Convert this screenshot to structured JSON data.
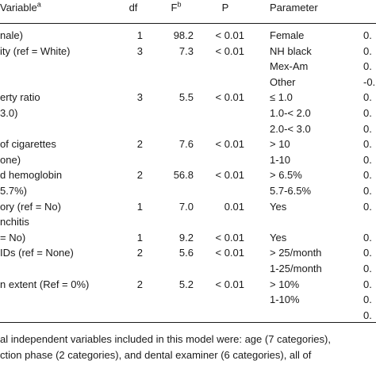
{
  "headers": {
    "variable": "Variable",
    "variable_sup": "a",
    "df": "df",
    "f": "F",
    "f_sup": "b",
    "p": "P",
    "parameter": "Parameter",
    "last": ""
  },
  "rows": [
    {
      "variable": "nale)",
      "df": "1",
      "f": "98.2",
      "p": "< 0.01",
      "parameter": "Female",
      "est": "0."
    },
    {
      "variable": "ity (ref = White)",
      "df": "3",
      "f": "7.3",
      "p": "< 0.01",
      "parameter": "NH black",
      "est": "0."
    },
    {
      "variable": "",
      "df": "",
      "f": "",
      "p": "",
      "parameter": "Mex-Am",
      "est": "0."
    },
    {
      "variable": "",
      "df": "",
      "f": "",
      "p": "",
      "parameter": "Other",
      "est": "-0."
    },
    {
      "variable": "erty ratio",
      "df": "3",
      "f": "5.5",
      "p": "< 0.01",
      "parameter": "≤ 1.0",
      "est": "0."
    },
    {
      "variable": "3.0)",
      "df": "",
      "f": "",
      "p": "",
      "parameter": "1.0-< 2.0",
      "est": "0."
    },
    {
      "variable": "",
      "df": "",
      "f": "",
      "p": "",
      "parameter": "2.0-< 3.0",
      "est": "0."
    },
    {
      "variable": "of cigarettes",
      "df": "2",
      "f": "7.6",
      "p": "< 0.01",
      "parameter": "> 10",
      "est": "0."
    },
    {
      "variable": "one)",
      "df": "",
      "f": "",
      "p": "",
      "parameter": "1-10",
      "est": "0."
    },
    {
      "variable": "d hemoglobin",
      "df": "2",
      "f": "56.8",
      "p": "< 0.01",
      "parameter": "> 6.5%",
      "est": "0."
    },
    {
      "variable": "5.7%)",
      "df": "",
      "f": "",
      "p": "",
      "parameter": "5.7-6.5%",
      "est": "0."
    },
    {
      "variable": "ory (ref = No)",
      "df": "1",
      "f": "7.0",
      "p": "0.01",
      "parameter": "Yes",
      "est": "0."
    },
    {
      "variable": "nchitis",
      "df": "",
      "f": "",
      "p": "",
      "parameter": "",
      "est": ""
    },
    {
      "variable": "= No)",
      "df": "1",
      "f": "9.2",
      "p": "< 0.01",
      "parameter": "Yes",
      "est": "0."
    },
    {
      "variable": "IDs (ref = None)",
      "df": "2",
      "f": "5.6",
      "p": "< 0.01",
      "parameter": "> 25/month",
      "est": "0."
    },
    {
      "variable": "",
      "df": "",
      "f": "",
      "p": "",
      "parameter": "1-25/month",
      "est": "0."
    },
    {
      "variable": "n extent (Ref = 0%)",
      "df": "2",
      "f": "5.2",
      "p": "< 0.01",
      "parameter": "> 10%",
      "est": "0."
    },
    {
      "variable": "",
      "df": "",
      "f": "",
      "p": "",
      "parameter": "1-10%",
      "est": "0."
    },
    {
      "variable": "",
      "df": "",
      "f": "",
      "p": "",
      "parameter": "",
      "est": "0."
    }
  ],
  "footnote": {
    "line1": "al independent variables included in this model were: age (7 categories),",
    "line2": "ction phase (2 categories), and dental examiner (6 categories), all of"
  }
}
